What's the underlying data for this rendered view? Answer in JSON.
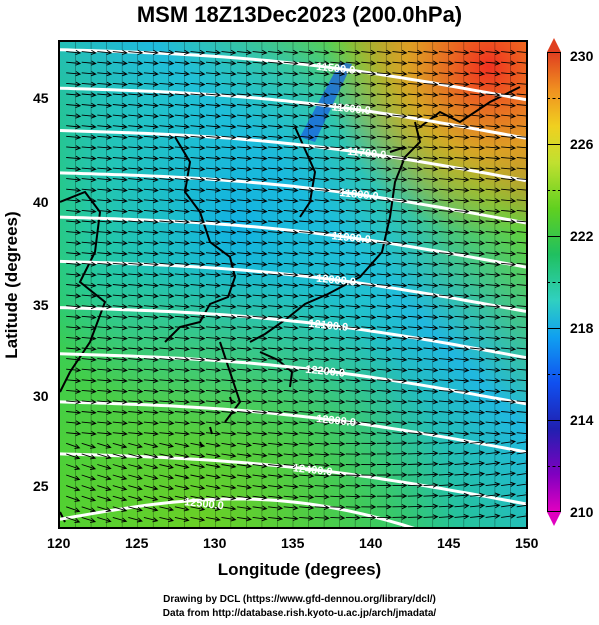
{
  "title": "MSM 18Z13Dec2023 (200.0hPa)",
  "x_axis": {
    "label": "Longitude (degrees)",
    "range": [
      120,
      150
    ],
    "ticks": [
      "120",
      "125",
      "130",
      "135",
      "140",
      "145",
      "150"
    ]
  },
  "y_axis": {
    "label": "Latitude  (degrees)",
    "range": [
      22.4,
      47.6
    ],
    "ticks": [
      "25",
      "30",
      "35",
      "40",
      "45"
    ]
  },
  "colorbar": {
    "labels": [
      "230",
      "226",
      "222",
      "218",
      "214",
      "210"
    ],
    "min": 210,
    "max": 230,
    "colors": [
      "#e000c0",
      "#2020b0",
      "#10a0f0",
      "#20c060",
      "#c0e030",
      "#e04020"
    ]
  },
  "contours": [
    {
      "label": "11500.0",
      "value": 11500
    },
    {
      "label": "11600.0",
      "value": 11600
    },
    {
      "label": "11700.0",
      "value": 11700
    },
    {
      "label": "11800.0",
      "value": 11800
    },
    {
      "label": "11900.0",
      "value": 11900
    },
    {
      "label": "12000.0",
      "value": 12000
    },
    {
      "label": "12100.0",
      "value": 12100
    },
    {
      "label": "12200.0",
      "value": 12200
    },
    {
      "label": "12300.0",
      "value": 12300
    },
    {
      "label": "12400.0",
      "value": 12400
    },
    {
      "label": "12500.0",
      "value": 12500
    }
  ],
  "footer": {
    "line1": "Drawing by DCL (https://www.gfd-dennou.org/library/dcl/)",
    "line2": "Data from http://database.rish.kyoto-u.ac.jp/arch/jmadata/"
  }
}
